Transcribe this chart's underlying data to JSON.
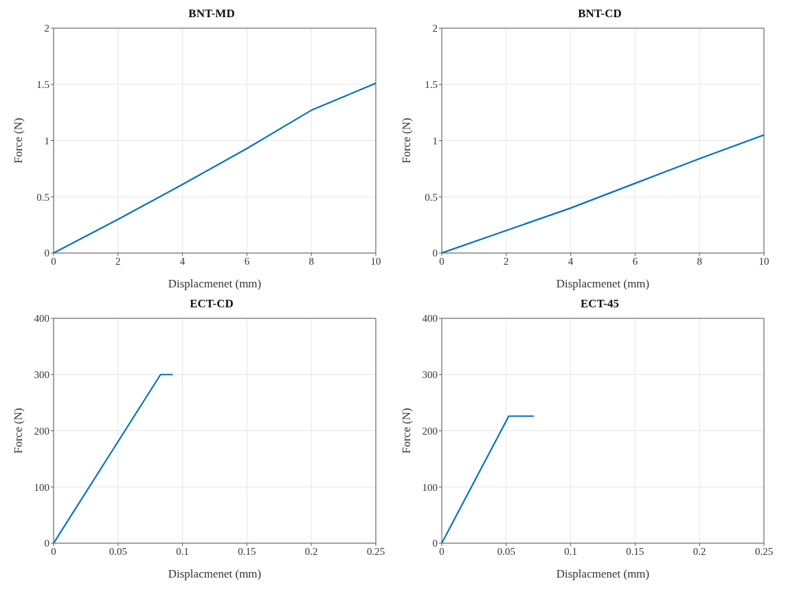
{
  "chart_data": [
    {
      "type": "line",
      "title": "BNT-MD",
      "xlabel": "Displacmenet (mm)",
      "ylabel": "Force (N)",
      "xlim": [
        0,
        10
      ],
      "xticks": [
        0,
        2,
        4,
        6,
        8,
        10
      ],
      "ylim": [
        0,
        2
      ],
      "yticks": [
        0,
        0.5,
        1,
        1.5,
        2
      ],
      "grid": true,
      "series": [
        {
          "color": "#0072bd",
          "x": [
            0,
            2,
            4,
            6,
            7,
            8,
            9,
            10
          ],
          "values": [
            0,
            0.3,
            0.61,
            0.93,
            1.1,
            1.27,
            1.39,
            1.51
          ]
        }
      ]
    },
    {
      "type": "line",
      "title": "BNT-CD",
      "xlabel": "Displacmenet (mm)",
      "ylabel": "Force (N)",
      "xlim": [
        0,
        10
      ],
      "xticks": [
        0,
        2,
        4,
        6,
        8,
        10
      ],
      "ylim": [
        0,
        2
      ],
      "yticks": [
        0,
        0.5,
        1,
        1.5,
        2
      ],
      "grid": true,
      "series": [
        {
          "color": "#0072bd",
          "x": [
            0,
            2,
            4,
            6,
            8,
            10
          ],
          "values": [
            0,
            0.2,
            0.4,
            0.62,
            0.84,
            1.05
          ]
        }
      ]
    },
    {
      "type": "line",
      "title": "ECT-CD",
      "xlabel": "Displacmenet (mm)",
      "ylabel": "Force (N)",
      "xlim": [
        0,
        0.25
      ],
      "xticks": [
        0,
        0.05,
        0.1,
        0.15,
        0.2,
        0.25
      ],
      "ylim": [
        0,
        400
      ],
      "yticks": [
        0,
        100,
        200,
        300,
        400
      ],
      "grid": true,
      "series": [
        {
          "color": "#0072bd",
          "x": [
            0,
            0.083,
            0.092
          ],
          "values": [
            0,
            300,
            300
          ]
        }
      ]
    },
    {
      "type": "line",
      "title": "ECT-45",
      "xlabel": "Displacmenet (mm)",
      "ylabel": "Force (N)",
      "xlim": [
        0,
        0.25
      ],
      "xticks": [
        0,
        0.05,
        0.1,
        0.15,
        0.2,
        0.25
      ],
      "ylim": [
        0,
        400
      ],
      "yticks": [
        0,
        100,
        200,
        300,
        400
      ],
      "grid": true,
      "series": [
        {
          "color": "#0072bd",
          "x": [
            0,
            0.052,
            0.071
          ],
          "values": [
            0,
            226,
            226
          ]
        }
      ]
    }
  ]
}
